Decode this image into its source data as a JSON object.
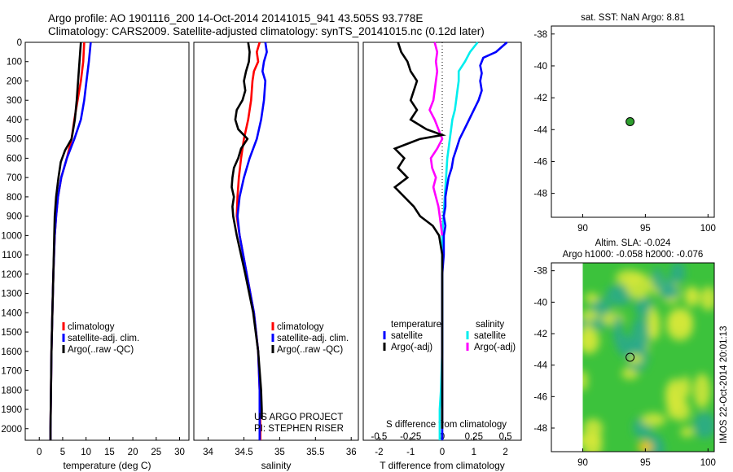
{
  "header": {
    "line1": "Argo profile: AO 1901116_200 14-Oct-2014 20141015_941 43.505S 93.778E",
    "line2": "Climatology: CARS2009. Satellite-adjusted climatology: synTS_20141015.nc (0.12d later)"
  },
  "side_stamp": "IMOS 22-Oct-2014 20:01:13",
  "colors": {
    "climatology": "#ff0000",
    "satellite": "#0000ff",
    "argo": "#000000",
    "sal_satellite": "#00eeee",
    "sal_argo": "#ff00ff",
    "float_marker": "#2e9e2e",
    "sla_field_base": "#3cc23c",
    "sla_field_high": "#d6e83a",
    "sla_field_low": "#2aa98c"
  },
  "chart_data": [
    {
      "type": "line",
      "id": "temperature",
      "xlabel": "temperature (deg C)",
      "ylabel": "",
      "xlim": [
        -3,
        32
      ],
      "ylim": [
        2060,
        0
      ],
      "xticks": [
        0,
        5,
        10,
        15,
        20,
        25,
        30
      ],
      "xtick_labels": [
        "0",
        "5",
        "10",
        "15",
        "20",
        "25",
        "30"
      ],
      "yticks": [
        0,
        100,
        200,
        300,
        400,
        500,
        600,
        700,
        800,
        900,
        1000,
        1100,
        1200,
        1300,
        1400,
        1500,
        1600,
        1700,
        1800,
        1900,
        2000
      ],
      "legend_position": "bottom-right",
      "series": [
        {
          "name": "climatology",
          "color": "#ff0000",
          "y": [
            0,
            100,
            200,
            300,
            400,
            500,
            600,
            700,
            800,
            900,
            1000,
            1200,
            1400,
            1600,
            1800,
            2000,
            2060
          ],
          "x": [
            9.6,
            9.4,
            8.9,
            8.2,
            7.5,
            6.9,
            5.9,
            4.7,
            4.0,
            3.6,
            3.3,
            3.0,
            2.8,
            2.6,
            2.5,
            2.4,
            2.4
          ]
        },
        {
          "name": "satellite-adj. clim.",
          "color": "#0000ff",
          "y": [
            0,
            100,
            200,
            300,
            400,
            500,
            600,
            700,
            800,
            900,
            1000,
            1200,
            1400,
            1600,
            1800,
            2000,
            2060
          ],
          "x": [
            11.0,
            10.6,
            10.1,
            9.6,
            8.9,
            7.5,
            5.9,
            4.7,
            4.0,
            3.6,
            3.3,
            3.0,
            2.8,
            2.6,
            2.5,
            2.4,
            2.4
          ]
        },
        {
          "name": "Argo(..raw -QC)",
          "color": "#000000",
          "y": [
            0,
            100,
            200,
            300,
            400,
            500,
            560,
            620,
            700,
            800,
            900,
            1000,
            1200,
            1400,
            1600,
            1800,
            2000,
            2060
          ],
          "x": [
            8.9,
            8.6,
            8.3,
            8.0,
            7.6,
            6.9,
            5.5,
            4.6,
            4.1,
            3.6,
            3.3,
            3.2,
            3.0,
            2.8,
            2.6,
            2.5,
            2.4,
            2.4
          ]
        }
      ]
    },
    {
      "type": "line",
      "id": "salinity",
      "xlabel": "salinity",
      "xlim": [
        33.8,
        36.1
      ],
      "ylim": [
        2060,
        0
      ],
      "xticks": [
        34,
        34.5,
        35,
        35.5,
        36
      ],
      "xtick_labels": [
        "34",
        "34.5",
        "35",
        "35.5",
        "36"
      ],
      "legend_position": "bottom-right",
      "annotations": [
        "US ARGO PROJECT",
        "PI: STEPHEN RISER"
      ],
      "series": [
        {
          "name": "climatology",
          "color": "#ff0000",
          "y": [
            0,
            50,
            100,
            150,
            200,
            300,
            400,
            500,
            600,
            700,
            800,
            900,
            1000,
            1200,
            1400,
            1600,
            1800,
            2000,
            2060
          ],
          "x": [
            34.72,
            34.68,
            34.7,
            34.64,
            34.62,
            34.6,
            34.56,
            34.5,
            34.46,
            34.43,
            34.41,
            34.4,
            34.44,
            34.54,
            34.64,
            34.7,
            34.72,
            34.73,
            34.73
          ]
        },
        {
          "name": "satellite-adj. clim.",
          "color": "#0000ff",
          "y": [
            0,
            50,
            100,
            150,
            200,
            300,
            400,
            500,
            600,
            700,
            800,
            900,
            1000,
            1200,
            1400,
            1600,
            1800,
            2000,
            2060
          ],
          "x": [
            34.8,
            34.82,
            34.78,
            34.76,
            34.8,
            34.78,
            34.74,
            34.68,
            34.58,
            34.5,
            34.44,
            34.41,
            34.44,
            34.54,
            34.64,
            34.7,
            34.72,
            34.72,
            34.72
          ]
        },
        {
          "name": "Argo(..raw -QC)",
          "color": "#000000",
          "y": [
            0,
            50,
            100,
            150,
            200,
            250,
            300,
            350,
            400,
            450,
            500,
            550,
            600,
            650,
            700,
            750,
            800,
            850,
            900,
            1000,
            1200,
            1400,
            1600,
            1800,
            1900,
            1950
          ],
          "x": [
            34.56,
            34.58,
            34.57,
            34.53,
            34.5,
            34.52,
            34.48,
            34.4,
            34.38,
            34.42,
            34.55,
            34.46,
            34.42,
            34.36,
            34.34,
            34.33,
            34.36,
            34.34,
            34.35,
            34.4,
            34.52,
            34.63,
            34.7,
            34.74,
            34.75,
            34.75
          ]
        }
      ]
    },
    {
      "type": "line",
      "id": "differences",
      "xlabel": "T difference from climatology",
      "title_bottom": "S difference from climatology",
      "xlim": [
        -2.5,
        2.5
      ],
      "ylim": [
        2060,
        0
      ],
      "xticks": [
        -2,
        -1,
        0,
        1,
        2
      ],
      "xtick_labels": [
        "-2",
        "-1",
        "0",
        "1",
        "2"
      ],
      "sticks_labels": [
        "-0.5",
        "-0.25",
        "0",
        "0.25",
        "0.5"
      ],
      "legend_position": "bottom",
      "legend_groups": [
        {
          "title": "temperature",
          "entries": [
            {
              "name": "satellite",
              "color": "#0000ff"
            },
            {
              "name": "Argo(-adj)",
              "color": "#000000"
            }
          ]
        },
        {
          "title": "salinity",
          "entries": [
            {
              "name": "satellite",
              "color": "#00eeee"
            },
            {
              "name": "Argo(-adj)",
              "color": "#ff00ff"
            }
          ]
        }
      ],
      "series": [
        {
          "name": "temperature satellite",
          "color": "#0000ff",
          "y": [
            0,
            50,
            80,
            120,
            160,
            200,
            250,
            300,
            350,
            400,
            450,
            500,
            550,
            600,
            650,
            700,
            750,
            800,
            850,
            900,
            950,
            1000,
            1100,
            1200,
            1400,
            1600,
            1800,
            2000,
            2060
          ],
          "x": [
            2.05,
            1.7,
            1.3,
            1.2,
            1.25,
            1.2,
            1.25,
            1.15,
            1.0,
            0.85,
            0.7,
            0.55,
            0.45,
            0.35,
            0.3,
            0.2,
            0.15,
            0.1,
            0.1,
            0.05,
            0.1,
            0.05,
            0.05,
            0.0,
            0.0,
            0.0,
            0.0,
            0.0,
            0.0
          ]
        },
        {
          "name": "temperature Argo(-adj)",
          "color": "#000000",
          "y": [
            0,
            50,
            100,
            150,
            200,
            250,
            300,
            350,
            400,
            450,
            480,
            500,
            550,
            600,
            650,
            700,
            750,
            800,
            850,
            900,
            950,
            1000,
            1100,
            1200,
            1400,
            1600,
            1800,
            2000
          ],
          "x": [
            -1.4,
            -1.3,
            -1.1,
            -1.0,
            -0.8,
            -0.9,
            -1.0,
            -0.8,
            -1.0,
            -0.5,
            0.0,
            -0.7,
            -1.5,
            -1.2,
            -1.4,
            -1.1,
            -1.5,
            -1.2,
            -0.9,
            -0.7,
            -0.3,
            -0.1,
            0.0,
            0.0,
            0.0,
            0.0,
            0.0,
            0.0
          ]
        }
      ],
      "series_salinity_units": [
        {
          "name": "salinity satellite",
          "color": "#00eeee",
          "y": [
            0,
            50,
            100,
            150,
            200,
            250,
            300,
            350,
            400,
            450,
            500,
            550,
            600,
            700,
            800,
            900,
            1000,
            1200,
            1400,
            1600,
            1800,
            1900,
            2000,
            2060
          ],
          "x": [
            0.28,
            0.22,
            0.18,
            0.13,
            0.13,
            0.12,
            0.11,
            0.1,
            0.08,
            0.07,
            0.06,
            0.05,
            0.04,
            0.03,
            0.02,
            0.01,
            0.0,
            0.0,
            0.0,
            0.0,
            -0.01,
            -0.02,
            -0.02,
            -0.02
          ]
        },
        {
          "name": "salinity Argo(-adj)",
          "color": "#ff00ff",
          "y": [
            0,
            50,
            100,
            150,
            200,
            250,
            300,
            350,
            400,
            450,
            500,
            550,
            600,
            650,
            700,
            750,
            800,
            850,
            900,
            1000
          ],
          "x": [
            -0.06,
            -0.04,
            -0.05,
            -0.04,
            -0.05,
            -0.06,
            -0.07,
            -0.1,
            -0.06,
            -0.03,
            0.0,
            -0.04,
            -0.09,
            -0.08,
            -0.05,
            -0.07,
            -0.05,
            -0.03,
            -0.02,
            0.0
          ]
        }
      ]
    },
    {
      "type": "scatter",
      "id": "sst-map",
      "title": "sat. SST: NaN Argo: 8.81",
      "xlim": [
        87.5,
        100.5
      ],
      "ylim": [
        -49.5,
        -37.5
      ],
      "xticks": [
        90,
        95,
        100
      ],
      "yticks": [
        -38,
        -40,
        -42,
        -44,
        -46,
        -48
      ],
      "series": [
        {
          "name": "",
          "x": [
            93.78
          ],
          "y": [
            -43.5
          ]
        }
      ]
    },
    {
      "type": "heatmap",
      "id": "sla-map",
      "title": "Altim. SLA: -0.024",
      "subtitle": "Argo h1000: -0.058 h2000: -0.076",
      "xlim": [
        87.5,
        100.5
      ],
      "ylim": [
        -49.5,
        -37.5
      ],
      "xticks": [
        90,
        95,
        100
      ],
      "yticks": [
        -38,
        -40,
        -42,
        -44,
        -46,
        -48
      ],
      "field_lon_range": [
        90,
        100.5
      ],
      "series": [
        {
          "name": "",
          "x": [
            93.78
          ],
          "y": [
            -43.5
          ]
        }
      ]
    }
  ]
}
